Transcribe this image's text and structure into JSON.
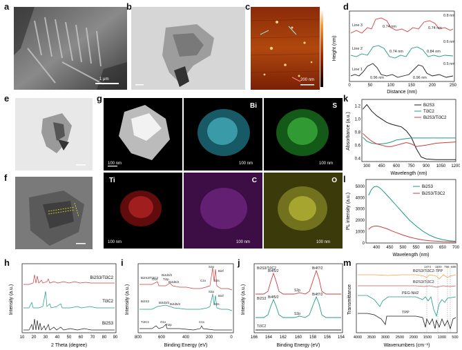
{
  "labels": {
    "a": "a",
    "b": "b",
    "c": "c",
    "d": "d",
    "e": "e",
    "f": "f",
    "g": "g",
    "h": "h",
    "i": "i",
    "j": "j",
    "k": "k",
    "l": "l",
    "m": "m"
  },
  "scalebars": {
    "a": "1 μm",
    "c": "200 nm",
    "g_bi": "100 nm",
    "g_s": "100 nm",
    "g_s2": "100 nm",
    "g_ti": "100 nm",
    "g_c": "100 nm",
    "g_o": "100 nm"
  },
  "eds": {
    "bi": "Bi",
    "s": "S",
    "ti": "Ti",
    "c": "C",
    "o": "O"
  },
  "colors": {
    "black": "#1a1a1a",
    "green": "#1a9a85",
    "red": "#d23a3a",
    "orange": "#e8a545",
    "pink": "#c65a5a"
  },
  "chart_data": [
    {
      "id": "d",
      "type": "line",
      "xlabel": "Distance (nm)",
      "ylabel": "Height (nm)",
      "xticks": [
        "0",
        "50",
        "100",
        "150",
        "200",
        "250"
      ],
      "series": [
        {
          "name": "Line 1"
        },
        {
          "name": "Line 2"
        },
        {
          "name": "Line 3"
        }
      ],
      "annotations": [
        "0.96 nm",
        "0.96 nm",
        "0.74 nm",
        "0.84 nm",
        "0.74 nm",
        "0.74 nm",
        "0.8 nm",
        "0.6 nm",
        "0.5 nm"
      ]
    },
    {
      "id": "h",
      "type": "line",
      "xlabel": "2 Theta (degree)",
      "ylabel": "Intensity (a.u.)",
      "xticks": [
        "10",
        "20",
        "30",
        "40",
        "50",
        "60",
        "70",
        "80",
        "90"
      ],
      "series": [
        {
          "name": "Bi2S3/Ti3C2"
        },
        {
          "name": "Ti3C2"
        },
        {
          "name": "Bi2S3"
        }
      ]
    },
    {
      "id": "i",
      "type": "line",
      "xlabel": "Binding Energy (eV)",
      "ylabel": "Intensity (a.u.)",
      "xticks": [
        "800",
        "600",
        "400",
        "200",
        "0"
      ],
      "series": [
        {
          "name": "Bi2S3/Ti3C2"
        },
        {
          "name": "Bi2S3"
        },
        {
          "name": "Ti3C2"
        }
      ],
      "peaks": [
        "O1s",
        "Bi4d3/2",
        "Ti2p",
        "Bi4d5/2",
        "C1s",
        "S2p",
        "Bi4f",
        "S2s",
        "Bi4d3/2",
        "Bi4d5/2",
        "S2p",
        "Bi4f",
        "S2s",
        "O1s",
        "Ti2p",
        "C1s"
      ]
    },
    {
      "id": "j",
      "type": "line",
      "xlabel": "Binding Energy (eV)",
      "ylabel": "Intensity (a.u.)",
      "xticks": [
        "166",
        "164",
        "162",
        "160",
        "158",
        "156",
        "154"
      ],
      "series": [
        {
          "name": "Bi2S3/Ti3C2"
        },
        {
          "name": "Bi2S3"
        },
        {
          "name": "Ti3C2"
        }
      ],
      "peaks": [
        "Bi4f5/2",
        "Bi4f7/2",
        "S2p",
        "Bi4f5/2",
        "S2p",
        "Bi4f7/2"
      ]
    },
    {
      "id": "k",
      "type": "line",
      "xlabel": "Wavelength (nm)",
      "ylabel": "Absorbance (a.u.)",
      "xticks": [
        "300",
        "450",
        "600",
        "750",
        "900",
        "1050",
        "1200"
      ],
      "yticks": [
        "0.4",
        "0.6",
        "0.8",
        "1.0",
        "1.2"
      ],
      "xlim": [
        250,
        1200
      ],
      "ylim": [
        0.35,
        1.3
      ],
      "series": [
        {
          "name": "Bi2S3",
          "x": [
            260,
            300,
            350,
            400,
            450,
            500,
            550,
            600,
            650,
            700,
            750,
            800,
            850,
            900,
            1000,
            1100,
            1200
          ],
          "y": [
            1.15,
            1.22,
            1.12,
            1.05,
            1.0,
            0.95,
            0.92,
            0.9,
            0.88,
            0.82,
            0.72,
            0.55,
            0.42,
            0.39,
            0.38,
            0.38,
            0.38
          ]
        },
        {
          "name": "Ti3C2",
          "x": [
            260,
            300,
            350,
            400,
            450,
            500,
            550,
            600,
            650,
            700,
            750,
            800,
            900,
            1000,
            1100,
            1200
          ],
          "y": [
            0.72,
            0.66,
            0.63,
            0.62,
            0.62,
            0.63,
            0.65,
            0.68,
            0.69,
            0.7,
            0.71,
            0.71,
            0.71,
            0.71,
            0.71,
            0.71
          ]
        },
        {
          "name": "Bi2S3/Ti3C2",
          "x": [
            260,
            300,
            350,
            400,
            450,
            500,
            550,
            600,
            650,
            700,
            750,
            800,
            900,
            1000,
            1100,
            1200
          ],
          "y": [
            0.78,
            0.72,
            0.66,
            0.62,
            0.6,
            0.58,
            0.58,
            0.6,
            0.62,
            0.64,
            0.62,
            0.58,
            0.6,
            0.63,
            0.64,
            0.65
          ]
        }
      ]
    },
    {
      "id": "l",
      "type": "line",
      "xlabel": "Wavelength (nm)",
      "ylabel": "PL intensity (a.u.)",
      "xticks": [
        "400",
        "450",
        "500",
        "550",
        "600",
        "650",
        "700"
      ],
      "yticks": [
        "0",
        "1000",
        "2000",
        "3000",
        "4000",
        "5000"
      ],
      "xlim": [
        360,
        700
      ],
      "ylim": [
        0,
        5600
      ],
      "series": [
        {
          "name": "Bi2S3",
          "x": [
            370,
            380,
            390,
            400,
            410,
            420,
            430,
            450,
            475,
            500,
            525,
            550,
            575,
            600,
            625,
            650,
            675,
            700
          ],
          "y": [
            4200,
            4700,
            4950,
            5000,
            4900,
            4700,
            4450,
            3950,
            3300,
            2650,
            2000,
            1500,
            1050,
            700,
            450,
            300,
            200,
            150
          ]
        },
        {
          "name": "Bi2S3/Ti3C2",
          "x": [
            370,
            380,
            390,
            400,
            410,
            420,
            440,
            460,
            480,
            500,
            525,
            550,
            575,
            600,
            650,
            700
          ],
          "y": [
            1200,
            1400,
            1480,
            1500,
            1460,
            1400,
            1250,
            1050,
            870,
            700,
            520,
            380,
            270,
            200,
            130,
            100
          ]
        }
      ]
    },
    {
      "id": "m",
      "type": "line",
      "xlabel": "Wavenumbers (cm⁻¹)",
      "ylabel": "Transmittance",
      "xticks": [
        "4000",
        "3500",
        "3000",
        "2500",
        "2000",
        "1500",
        "1000",
        "500"
      ],
      "series": [
        {
          "name": "Bi2S3/Ti3C2-TPP"
        },
        {
          "name": "Bi2S3/Ti3C2"
        },
        {
          "name": "PEG-NH2"
        },
        {
          "name": "TPP"
        }
      ],
      "annotations": [
        "1474",
        "1100",
        "756",
        "688"
      ]
    }
  ]
}
